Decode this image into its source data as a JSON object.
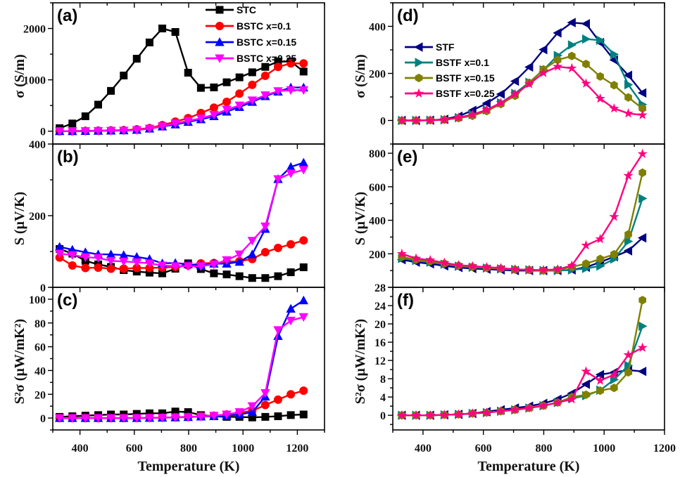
{
  "figure": {
    "xlabel_left": "Temperature (K)",
    "xlabel_right": "Temperature (K)"
  },
  "chart_data": [
    {
      "id": "a",
      "type": "line",
      "panel_label": "(a)",
      "ylabel": "σ (S/m)",
      "xlim": [
        300,
        1300
      ],
      "ylim": [
        -250,
        2500
      ],
      "xticks": [
        400,
        600,
        800,
        1000,
        1200
      ],
      "yticks": [
        0,
        1000,
        2000
      ],
      "ytick_labels": [
        "0",
        "1000",
        "2000"
      ],
      "legend": "top-right",
      "show_xtick_labels": false,
      "x": [
        325,
        372,
        420,
        467,
        514,
        561,
        609,
        656,
        703,
        751,
        798,
        845,
        893,
        940,
        987,
        1034,
        1082,
        1129,
        1176,
        1223
      ],
      "series": [
        {
          "name": "STC",
          "color": "#000000",
          "marker": "square",
          "values": [
            58,
            150,
            290,
            517,
            785,
            1084,
            1411,
            1728,
            2000,
            1932,
            1139,
            843,
            853,
            952,
            1048,
            1147,
            1252,
            1356,
            1356,
            1161
          ]
        },
        {
          "name": "BSTC x=0.1",
          "color": "#ff0000",
          "marker": "circle",
          "values": [
            0,
            0,
            5,
            10,
            15,
            20,
            35,
            60,
            118,
            186,
            254,
            354,
            458,
            571,
            731,
            902,
            1079,
            1252,
            1320,
            1320
          ]
        },
        {
          "name": "BSTC x=0.15",
          "color": "#0000ff",
          "marker": "triangle-up",
          "values": [
            0,
            0,
            3,
            6,
            10,
            15,
            25,
            50,
            90,
            130,
            180,
            230,
            290,
            380,
            470,
            570,
            680,
            770,
            850,
            850
          ]
        },
        {
          "name": "BSTC x=0.25",
          "color": "#ff00ff",
          "marker": "triangle-down",
          "values": [
            0,
            0,
            2,
            5,
            8,
            12,
            22,
            50,
            95,
            150,
            200,
            250,
            320,
            420,
            500,
            600,
            700,
            780,
            800,
            800
          ]
        }
      ]
    },
    {
      "id": "b",
      "type": "line",
      "panel_label": "(b)",
      "ylabel": "S (μV/K)",
      "xlim": [
        300,
        1300
      ],
      "ylim": [
        0,
        400
      ],
      "xticks": [
        400,
        600,
        800,
        1000,
        1200
      ],
      "yticks": [
        0,
        200,
        400
      ],
      "ytick_labels": [
        "0",
        "200",
        "400"
      ],
      "show_xtick_labels": false,
      "x": [
        325,
        372,
        420,
        467,
        514,
        561,
        609,
        656,
        703,
        751,
        798,
        845,
        893,
        940,
        987,
        1034,
        1082,
        1129,
        1176,
        1223
      ],
      "series": [
        {
          "name": "STC",
          "color": "#000000",
          "marker": "square",
          "values": [
            107,
            94,
            74,
            64,
            57,
            48,
            44,
            41,
            39,
            52,
            67,
            51,
            39,
            36,
            31,
            26,
            26,
            31,
            42,
            56
          ]
        },
        {
          "name": "BSTC x=0.1",
          "color": "#ff0000",
          "marker": "circle",
          "values": [
            83,
            61,
            54,
            55,
            52,
            52,
            54,
            54,
            55,
            57,
            61,
            67,
            68,
            71,
            73,
            79,
            98,
            110,
            120,
            131
          ]
        },
        {
          "name": "BSTC x=0.15",
          "color": "#0000ff",
          "marker": "triangle-up",
          "values": [
            113,
            105,
            98,
            92,
            92,
            90,
            85,
            79,
            67,
            68,
            64,
            61,
            66,
            66,
            71,
            92,
            163,
            302,
            336,
            348
          ]
        },
        {
          "name": "BSTC x=0.25",
          "color": "#ff00ff",
          "marker": "triangle-down",
          "values": [
            94,
            90,
            84,
            82,
            74,
            72,
            70,
            67,
            61,
            59,
            59,
            59,
            64,
            76,
            92,
            130,
            170,
            302,
            318,
            328
          ]
        }
      ]
    },
    {
      "id": "c",
      "type": "line",
      "panel_label": "(c)",
      "ylabel": "S²σ (μW/mK²)",
      "xlabel": "Temperature (K)",
      "xlim": [
        300,
        1300
      ],
      "ylim": [
        -10,
        110
      ],
      "xticks": [
        400,
        600,
        800,
        1000,
        1200
      ],
      "yticks": [
        0,
        20,
        40,
        60,
        80,
        100
      ],
      "ytick_labels": [
        "0",
        "20",
        "40",
        "60",
        "80",
        "100"
      ],
      "show_xtick_labels": true,
      "x": [
        325,
        372,
        420,
        467,
        514,
        561,
        609,
        656,
        703,
        751,
        798,
        845,
        893,
        940,
        987,
        1034,
        1082,
        1129,
        1176,
        1223
      ],
      "series": [
        {
          "name": "STC",
          "color": "#000000",
          "marker": "square",
          "values": [
            1,
            1.5,
            2,
            2.5,
            3,
            3,
            3.5,
            4,
            4,
            5.5,
            5,
            2.5,
            1.5,
            1,
            1,
            0.5,
            1,
            1.5,
            2.5,
            3
          ]
        },
        {
          "name": "BSTC x=0.1",
          "color": "#ff0000",
          "marker": "circle",
          "values": [
            0,
            0,
            0,
            0,
            0,
            0,
            0.1,
            0.2,
            0.4,
            0.7,
            1,
            1.5,
            2,
            3,
            4.5,
            6,
            11,
            15.5,
            20,
            23
          ]
        },
        {
          "name": "BSTC x=0.15",
          "color": "#0000ff",
          "marker": "triangle-up",
          "values": [
            0,
            0,
            0,
            0,
            0,
            0,
            0,
            0.1,
            0.3,
            0.5,
            0.8,
            1.2,
            1.5,
            2,
            3,
            5,
            18,
            69,
            92,
            99
          ]
        },
        {
          "name": "BSTC x=0.25",
          "color": "#ff00ff",
          "marker": "triangle-down",
          "values": [
            0,
            0,
            0,
            0,
            0,
            0,
            0,
            0.1,
            0.3,
            0.5,
            0.8,
            1.2,
            2,
            3,
            5,
            10,
            21,
            74,
            82,
            85
          ]
        }
      ]
    },
    {
      "id": "d",
      "type": "line",
      "panel_label": "(d)",
      "ylabel": "σ (S/m)",
      "xlim": [
        300,
        1200
      ],
      "ylim": [
        -100,
        500
      ],
      "xticks": [
        400,
        600,
        800,
        1000,
        1200
      ],
      "yticks": [
        0,
        200,
        400
      ],
      "ytick_labels": [
        "0",
        "200",
        "400"
      ],
      "legend": "upper-left",
      "show_xtick_labels": false,
      "x": [
        330,
        377,
        424,
        471,
        518,
        564,
        611,
        658,
        705,
        752,
        799,
        846,
        893,
        940,
        987,
        1033,
        1080,
        1127
      ],
      "series": [
        {
          "name": "STF",
          "color": "#000080",
          "marker": "triangle-left",
          "values": [
            0,
            0,
            1,
            5,
            18,
            43,
            73,
            112,
            167,
            227,
            301,
            372,
            416,
            411,
            331,
            257,
            192,
            117
          ]
        },
        {
          "name": "BSTF x=0.1",
          "color": "#008080",
          "marker": "triangle-right",
          "values": [
            0,
            0,
            1,
            3,
            12,
            25,
            45,
            75,
            115,
            162,
            215,
            276,
            321,
            346,
            341,
            281,
            152,
            68
          ]
        },
        {
          "name": "BSTF x=0.15",
          "color": "#808000",
          "marker": "hexagon",
          "values": [
            0,
            0,
            1,
            3,
            10,
            20,
            40,
            70,
            105,
            160,
            217,
            257,
            274,
            240,
            187,
            150,
            98,
            51
          ]
        },
        {
          "name": "BSTF x=0.25",
          "color": "#ff0080",
          "marker": "star",
          "values": [
            0,
            0,
            1,
            3,
            12,
            25,
            45,
            75,
            112,
            155,
            202,
            229,
            222,
            157,
            93,
            51,
            30,
            23
          ]
        }
      ]
    },
    {
      "id": "e",
      "type": "line",
      "panel_label": "(e)",
      "ylabel": "S (μV/K)",
      "xlim": [
        300,
        1200
      ],
      "ylim": [
        0,
        855
      ],
      "xticks": [
        400,
        600,
        800,
        1000,
        1200
      ],
      "yticks": [
        0,
        200,
        400,
        600,
        800
      ],
      "ytick_labels": [
        "",
        "200",
        "400",
        "600",
        "800"
      ],
      "show_xtick_labels": false,
      "x": [
        330,
        377,
        424,
        471,
        518,
        564,
        611,
        658,
        705,
        752,
        799,
        846,
        893,
        940,
        987,
        1033,
        1080,
        1127
      ],
      "series": [
        {
          "name": "STF",
          "color": "#000080",
          "marker": "triangle-left",
          "values": [
            165,
            150,
            140,
            128,
            118,
            112,
            108,
            104,
            100,
            100,
            100,
            100,
            104,
            120,
            150,
            183,
            218,
            295
          ]
        },
        {
          "name": "BSTF x=0.1",
          "color": "#008080",
          "marker": "triangle-right",
          "values": [
            172,
            160,
            150,
            138,
            126,
            120,
            115,
            110,
            106,
            104,
            100,
            100,
            104,
            113,
            127,
            169,
            274,
            530
          ]
        },
        {
          "name": "BSTF x=0.15",
          "color": "#808000",
          "marker": "hexagon",
          "values": [
            182,
            165,
            155,
            142,
            130,
            122,
            116,
            112,
            106,
            104,
            100,
            104,
            122,
            141,
            169,
            197,
            316,
            684
          ]
        },
        {
          "name": "BSTF x=0.25",
          "color": "#ff0080",
          "marker": "star",
          "values": [
            200,
            172,
            162,
            146,
            132,
            126,
            120,
            115,
            107,
            104,
            103,
            107,
            130,
            250,
            288,
            421,
            666,
            796
          ]
        }
      ]
    },
    {
      "id": "f",
      "type": "line",
      "panel_label": "(f)",
      "ylabel": "S²σ (μW/mK²)",
      "xlabel": "Temperature (K)",
      "xlim": [
        300,
        1200
      ],
      "ylim": [
        -3.2,
        28
      ],
      "xticks": [
        400,
        600,
        800,
        1000,
        1200
      ],
      "yticks": [
        0,
        4,
        8,
        12,
        16,
        20,
        24,
        28
      ],
      "ytick_labels": [
        "0",
        "4",
        "8",
        "12",
        "16",
        "20",
        "24",
        "28"
      ],
      "show_xtick_labels": true,
      "x": [
        330,
        377,
        424,
        471,
        518,
        564,
        611,
        658,
        705,
        752,
        799,
        846,
        893,
        940,
        987,
        1033,
        1080,
        1127
      ],
      "series": [
        {
          "name": "STF",
          "color": "#000080",
          "marker": "triangle-left",
          "values": [
            0,
            0,
            0,
            0.1,
            0.2,
            0.4,
            0.8,
            1.2,
            1.6,
            2.0,
            2.6,
            3.5,
            4.8,
            6.8,
            8.9,
            9.4,
            9.9,
            9.6
          ]
        },
        {
          "name": "BSTF x=0.1",
          "color": "#008080",
          "marker": "triangle-right",
          "values": [
            0,
            0,
            0,
            0.1,
            0.2,
            0.4,
            0.6,
            0.9,
            1.2,
            1.6,
            2.1,
            2.8,
            3.7,
            4.3,
            5.5,
            7.8,
            10.9,
            19.5
          ]
        },
        {
          "name": "BSTF x=0.15",
          "color": "#808000",
          "marker": "hexagon",
          "values": [
            0,
            0,
            0,
            0.1,
            0.2,
            0.4,
            0.6,
            0.9,
            1.2,
            1.6,
            2.1,
            2.8,
            4.0,
            4.5,
            5.4,
            6.0,
            9.4,
            25.2
          ]
        },
        {
          "name": "BSTF x=0.25",
          "color": "#ff0080",
          "marker": "star",
          "values": [
            0,
            0,
            0,
            0.1,
            0.2,
            0.4,
            0.6,
            0.9,
            1.2,
            1.6,
            2.1,
            2.8,
            3.5,
            9.6,
            7.6,
            8.9,
            13.2,
            14.8
          ]
        }
      ]
    }
  ]
}
